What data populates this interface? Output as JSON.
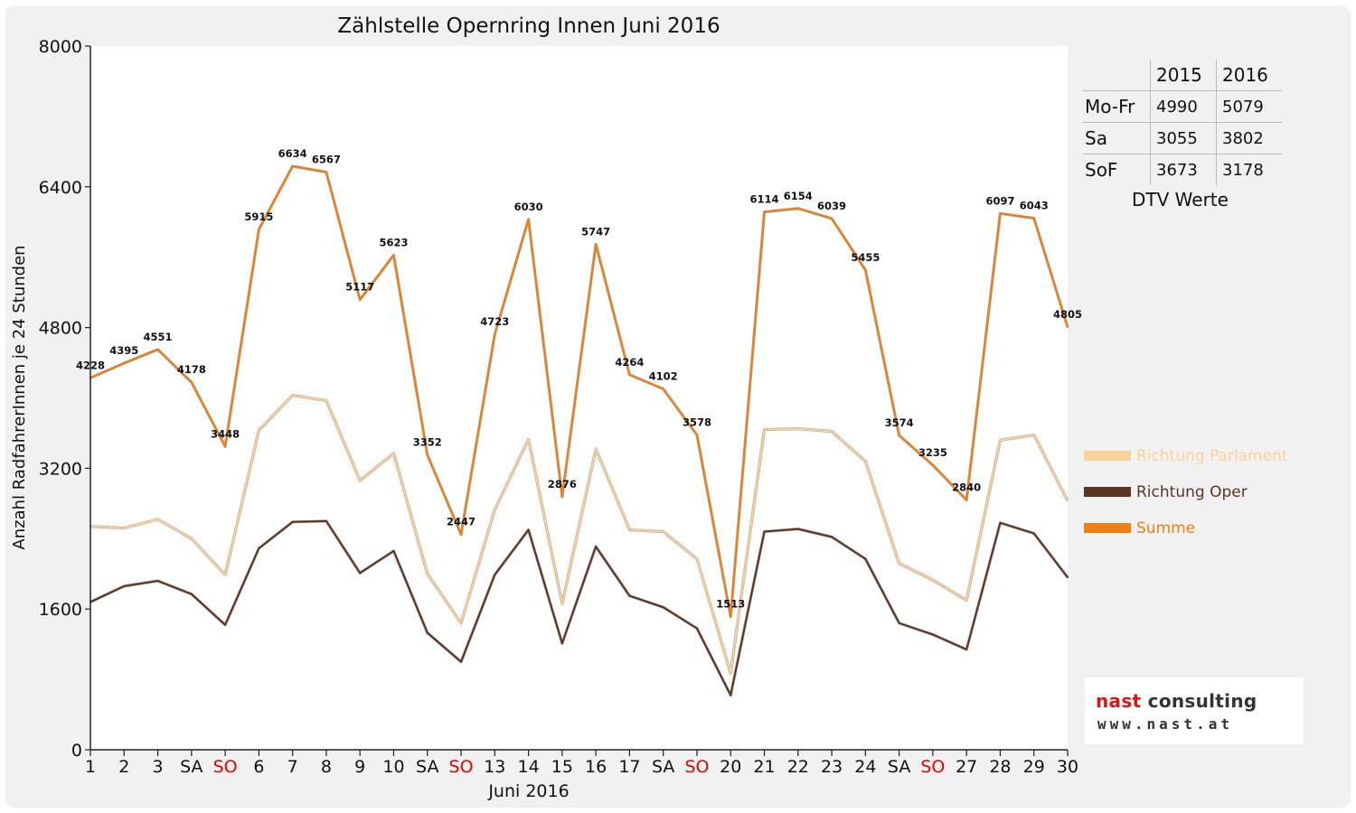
{
  "chart_data": {
    "type": "line",
    "title": "Zählstelle Opernring Innen Juni 2016",
    "xlabel": "Juni 2016",
    "ylabel": "Anzahl RadfahrerInnen je 24 Stunden",
    "ylim": [
      0,
      8000
    ],
    "yticks": [
      "0",
      "1600",
      "3200",
      "4800",
      "6400",
      "8000"
    ],
    "categories": [
      "1",
      "2",
      "3",
      "SA",
      "SO",
      "6",
      "7",
      "8",
      "9",
      "10",
      "SA",
      "SO",
      "13",
      "14",
      "15",
      "16",
      "17",
      "SA",
      "SO",
      "20",
      "21",
      "22",
      "23",
      "24",
      "SA",
      "SO",
      "27",
      "28",
      "29",
      "30"
    ],
    "weekend_categories": [
      "SO"
    ],
    "weekend_color": "#e00000",
    "grid": false,
    "legend_position": "right",
    "series": [
      {
        "name": "Richtung Parlament",
        "color": "#fbd29b",
        "values": [
          2540,
          2520,
          2620,
          2400,
          1990,
          3630,
          4030,
          3970,
          3060,
          3370,
          2000,
          1440,
          2730,
          3530,
          1660,
          3420,
          2500,
          2480,
          2170,
          870,
          3640,
          3650,
          3620,
          3280,
          2120,
          1930,
          1700,
          3520,
          3580,
          2830
        ]
      },
      {
        "name": "Richtung Oper",
        "color": "#5c3420",
        "values": [
          1680,
          1860,
          1920,
          1770,
          1420,
          2290,
          2590,
          2600,
          2010,
          2260,
          1330,
          1000,
          1990,
          2500,
          1210,
          2310,
          1750,
          1620,
          1380,
          620,
          2480,
          2510,
          2420,
          2170,
          1440,
          1310,
          1140,
          2580,
          2460,
          1960
        ]
      },
      {
        "name": "Summe",
        "color": "#f07f14",
        "values": [
          4228,
          4395,
          4551,
          4178,
          3448,
          5915,
          6634,
          6567,
          5117,
          5623,
          3352,
          2447,
          4723,
          6030,
          2876,
          5747,
          4264,
          4102,
          3578,
          1513,
          6114,
          6154,
          6039,
          5455,
          3574,
          3235,
          2840,
          6097,
          6043,
          4805
        ],
        "labels": [
          "4228",
          "4395",
          "4551",
          "4178",
          "3448",
          "5915",
          "6634",
          "6567",
          "5117",
          "5623",
          "3352",
          "2447",
          "4723",
          "6030",
          "2876",
          "5747",
          "4264",
          "4102",
          "3578",
          "1513",
          "6114",
          "6154",
          "6039",
          "5455",
          "3574",
          "3235",
          "2840",
          "6097",
          "6043",
          "4805"
        ]
      }
    ]
  },
  "dtv_table": {
    "header": [
      "",
      "2015",
      "2016"
    ],
    "rows": [
      {
        "label": "Mo-Fr",
        "y2015": "4990",
        "y2016": "5079"
      },
      {
        "label": "Sa",
        "y2015": "3055",
        "y2016": "3802"
      },
      {
        "label": "SoF",
        "y2015": "3673",
        "y2016": "3178"
      }
    ],
    "caption": "DTV Werte"
  },
  "logo": {
    "brand_red": "nast",
    "brand_rest": " consulting",
    "url": "www.nast.at",
    "red_color": "#d9151b"
  }
}
